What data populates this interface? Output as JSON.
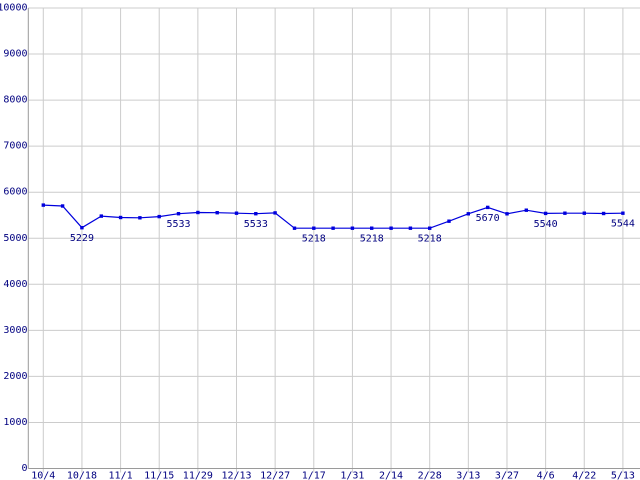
{
  "chart": {
    "colors": {
      "background": "#ffffff",
      "line": "#0000dd",
      "marker": "#0000dd",
      "grid": "#cccccc",
      "axis": "#9a9a9a",
      "text": "#000080"
    }
  },
  "chart_data": {
    "type": "line",
    "title": "",
    "xlabel": "",
    "ylabel": "",
    "ylim": [
      0,
      10000
    ],
    "grid": true,
    "legend": false,
    "marker": "square",
    "y_tick_labels": [
      "0",
      "1000",
      "2000",
      "3000",
      "4000",
      "5000",
      "6000",
      "7000",
      "8000",
      "9000",
      "10000"
    ],
    "y_tick_values": [
      0,
      1000,
      2000,
      3000,
      4000,
      5000,
      6000,
      7000,
      8000,
      9000,
      10000
    ],
    "x_tick_labels": [
      "10/4",
      "10/18",
      "11/1",
      "11/15",
      "11/29",
      "12/13",
      "12/27",
      "1/17",
      "1/31",
      "2/14",
      "2/28",
      "3/13",
      "3/27",
      "4/6",
      "4/22",
      "5/13"
    ],
    "points_per_tick_interval": 2,
    "series": [
      {
        "name": "values",
        "values": [
          5720,
          5700,
          5229,
          5480,
          5450,
          5445,
          5470,
          5533,
          5560,
          5555,
          5545,
          5533,
          5550,
          5218,
          5218,
          5218,
          5218,
          5218,
          5218,
          5218,
          5218,
          5370,
          5530,
          5670,
          5530,
          5610,
          5540,
          5545,
          5545,
          5538,
          5544
        ]
      }
    ],
    "point_labels": [
      {
        "index": 2,
        "text": "5229"
      },
      {
        "index": 7,
        "text": "5533"
      },
      {
        "index": 11,
        "text": "5533"
      },
      {
        "index": 14,
        "text": "5218"
      },
      {
        "index": 17,
        "text": "5218"
      },
      {
        "index": 20,
        "text": "5218"
      },
      {
        "index": 23,
        "text": "5670"
      },
      {
        "index": 26,
        "text": "5540"
      },
      {
        "index": 30,
        "text": "5544"
      }
    ]
  }
}
